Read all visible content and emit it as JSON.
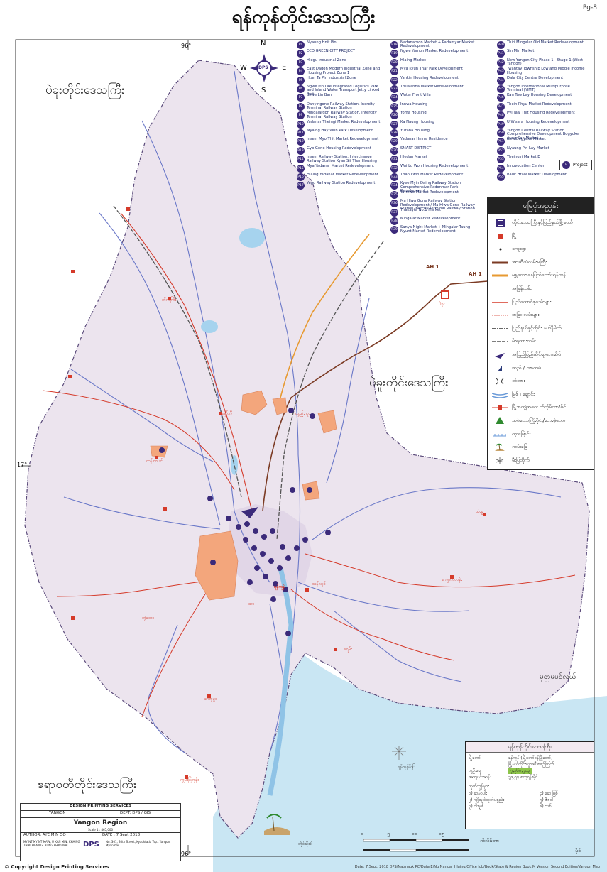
{
  "title": "ရန်ကုန်တိုင်းဒေသကြီး",
  "page_number": "Pg-8",
  "compass": {
    "n": "N",
    "s": "S",
    "e": "E",
    "w": "W",
    "center": "DPS"
  },
  "graticule": {
    "lon_top": "96°",
    "lon_bottom": "96°",
    "lat_left": "17°"
  },
  "region_labels": {
    "bago_nw": "ပဲခူးတိုင်းဒေသကြီး",
    "bago_e": "ပဲခူးတိုင်းဒေသကြီး",
    "ayeyarwady": "ဧရာဝတီတိုင်းဒေသကြီး",
    "sea": "မုတ္တမပင်လယ်"
  },
  "roads": {
    "ah1_a": "AH 1",
    "ah1_b": "AH 1"
  },
  "projects": [
    {
      "id": "P1",
      "label": "Nyaung Hnit Pin"
    },
    {
      "id": "P2",
      "label": "ECO GREEN CITY PROJECT"
    },
    {
      "id": "P3",
      "label": "Hlegu Industrial Zone"
    },
    {
      "id": "P4",
      "label": "East Dagon Modern Industrial Zone and Housing Project Zone 1"
    },
    {
      "id": "P5",
      "label": "Htan Ta Pin Industrial Zone"
    },
    {
      "id": "P6",
      "label": "Ngwe Pin Lae Integrated Logistics Park and Inland Water Transport Jetty Linked Port"
    },
    {
      "id": "P7",
      "label": "Shwe Lin Ban"
    },
    {
      "id": "P8",
      "label": "Danyingone Railway Station, Inercity Terminal Railway Station"
    },
    {
      "id": "P9",
      "label": "Mingalardon Railway Station, Intercity Terminal Railway Station"
    },
    {
      "id": "P10",
      "label": "Yadanar Theingi Market Redevelopment"
    },
    {
      "id": "P11",
      "label": "Myaing Hay Wun Park Development"
    },
    {
      "id": "P12",
      "label": "Insein Myo Thit Market Redevelopment"
    },
    {
      "id": "P13",
      "label": "Gyo Gone Housing Redevelopment"
    },
    {
      "id": "P14",
      "label": "Insein Railway Station, Interchange Railway Station Kyan Sit Thar Housing"
    },
    {
      "id": "P15",
      "label": "Mya Yadanar Market Redevelopment"
    },
    {
      "id": "P16",
      "label": "Hlaing Yadanar Market Redevelopment"
    },
    {
      "id": "P17",
      "label": "Yegu Railway Station Redevelopment"
    },
    {
      "id": "P18",
      "label": "Nadanarvon Market + Padamyar Market Redevelopment"
    },
    {
      "id": "P19",
      "label": "Ngwe Yamon Market Redevelopment"
    },
    {
      "id": "P20",
      "label": "Hlaing Market"
    },
    {
      "id": "P21",
      "label": "Mya Kyun Thar Park Development"
    },
    {
      "id": "P22",
      "label": "Yankin Housing Redevelopment"
    },
    {
      "id": "P23",
      "label": "Thuwanna Market Redevelopment"
    },
    {
      "id": "P24",
      "label": "Water Front Villa"
    },
    {
      "id": "P25",
      "label": "Innwa Housing"
    },
    {
      "id": "P26",
      "label": "Yoma Housing"
    },
    {
      "id": "P27",
      "label": "Ka Naung Housing"
    },
    {
      "id": "P28",
      "label": "Yuzana Housing"
    },
    {
      "id": "P29",
      "label": "Yadanar Hninsi Residence"
    },
    {
      "id": "P30",
      "label": "SMART DISTRICT"
    },
    {
      "id": "P31",
      "label": "Hledan Market"
    },
    {
      "id": "P32",
      "label": "Wai Lu Won Housing Redevelopment"
    },
    {
      "id": "P33",
      "label": "Than Lwin Market Redevelopment"
    },
    {
      "id": "P34",
      "label": "Kyee Myin Daing Railway Station Comprehensive Padonmar Park Development"
    },
    {
      "id": "P35",
      "label": "Tarmwe Market Redevelopment"
    },
    {
      "id": "P36",
      "label": "Ma Hlwa Gone Railway Station Redevelopment / Ma Hlwa Gone Railway Station,Inercity Terminal Railway Station"
    },
    {
      "id": "P37",
      "label": "Thakayta No.1 Market"
    },
    {
      "id": "P38",
      "label": "Mingalar Market Redevelopment"
    },
    {
      "id": "P39",
      "label": "Sanya Night Market + Mingalar Taung Nyunt Market Redevelopment"
    },
    {
      "id": "P40",
      "label": "Thiri Mingalar Old Market Redevelopment"
    },
    {
      "id": "P41",
      "label": "Sin Min Market"
    },
    {
      "id": "P42",
      "label": "New Yangon City Phase 1 - Stage 1 (West Yangon)"
    },
    {
      "id": "P43",
      "label": "Twantay Township Low and Middle Income Housing"
    },
    {
      "id": "P44",
      "label": "Dala City Centre Development"
    },
    {
      "id": "P45",
      "label": "Yangon International Multipurpose Terminal (YIMT)"
    },
    {
      "id": "P46",
      "label": "Kan Taw Lay Housing Development"
    },
    {
      "id": "P47",
      "label": "Thein Phyu Market Redevelopment"
    },
    {
      "id": "P48",
      "label": "Pyi Taw Thit Housing Redevelopment"
    },
    {
      "id": "P49",
      "label": "U Wisara Housing Redevelopment"
    },
    {
      "id": "P50",
      "label": "Yangon Central Railway Station Comprehensive Development Bogyoke Aung San Market"
    },
    {
      "id": "P51",
      "label": "New Bogyoke Market"
    },
    {
      "id": "P52",
      "label": "Nyaung Pin Lay Market"
    },
    {
      "id": "P53",
      "label": "Theingyi Market E"
    },
    {
      "id": "P54",
      "label": "Innovocation Center"
    },
    {
      "id": "P55",
      "label": "Bauk Htaw Market Development"
    }
  ],
  "project_key": {
    "badge": "P",
    "label": "Project"
  },
  "legend": {
    "heading": "မြေပုံအညွှန်း",
    "items": [
      {
        "symbol": "capital",
        "label": "တိုင်းဒေသကြီးနှင့်ပြည်နယ်မြို့တော်"
      },
      {
        "symbol": "town",
        "label": "မြို့"
      },
      {
        "symbol": "village",
        "label": "ကျေးရွာ"
      },
      {
        "symbol": "highway",
        "label": "အာဆီယံလမ်းမကြီး"
      },
      {
        "symbol": "expressway",
        "label": "မန္တလေး-နေပြည်တော်-ရန်ကုန်"
      },
      {
        "symbol": "expressway2",
        "label": "အမြန်လမ်း"
      },
      {
        "symbol": "union_road",
        "label": "ပြည်ထောင်စုလမ်းများ"
      },
      {
        "symbol": "minor_road",
        "label": "အခြားလမ်းများ"
      },
      {
        "symbol": "boundary",
        "label": "ပြည်နယ်နှင့်တိုင်း နယ်နိမိတ်"
      },
      {
        "symbol": "railway",
        "label": "မီးရထားလမ်း"
      },
      {
        "symbol": "airport",
        "label": "အပြည်ပြည်ဆိုင်ရာလေဆိပ်"
      },
      {
        "symbol": "dam",
        "label": "ဆည် / တာတမံ"
      },
      {
        "symbol": "bridge",
        "label": "တံတား"
      },
      {
        "symbol": "river",
        "label": "မြစ် ၊ ချောင်း"
      },
      {
        "symbol": "border_gate",
        "label": "မြို့အကျွံအဝေး ကီလိုမီတာ/မိုင်"
      },
      {
        "symbol": "forest",
        "label": "သစ်တောကြိုးဝိုင်း/ဘေးမဲ့တော"
      },
      {
        "symbol": "salt",
        "label": "တူးမြောင်း"
      },
      {
        "symbol": "beach",
        "label": "ကမ်းခြေ"
      },
      {
        "symbol": "lighthouse",
        "label": "မီးပြတိုက်"
      }
    ]
  },
  "info_box": {
    "heading": "ရန်ကုန်တိုင်းဒေသကြီး",
    "rows": [
      {
        "k": "မြို့တော်",
        "v": "ရန်ကုန် (မြို့တော်ဝန်မြို့တော်)"
      },
      {
        "k": "",
        "v": "မြို့နယ်တိုင်းလူ့အစီအစဉ်ကြက်"
      },
      {
        "k": "လူဦးရေ",
        "v": "၇,၃၆၀,၇၀၃"
      },
      {
        "k": "အကျယ်အဝန်း",
        "v": "၃၉,၅၇ စတုရန်းမိုင်"
      }
    ],
    "sub_heading": "ထုတ်ကုန်များ",
    "products": [
      "၁) ဆန်စပါး",
      "၂) ကျိုးမျှင်ထုတ်ပစ္စည်း",
      "၃) ငါးမျှစ်",
      "၄) ဆေးမြစ်",
      "၅) ဇီဇဝါ",
      "၆) သစ်"
    ]
  },
  "scale": {
    "labels": [
      "၀",
      "၅",
      "၁၀",
      "၁၅"
    ],
    "unit_km": "ကီလိုမီတာ",
    "unit_mi": "မိုင်"
  },
  "credit": {
    "company": "DESIGN PRINTING SERVICES",
    "city": "YANGON",
    "dept": "DEPT. DPS / GIS",
    "map_title": "Yangon Region",
    "scale_note": "Scale 1 : 465,000",
    "author": "AUTHOR: AYE MIN OO",
    "date": "DATE : 7 Sept 2018",
    "names": "MYINT MYINT MAW, U KAN MIN, KHAING THIRI HLAING, AUNG PHYO WAI",
    "logo": "DPS",
    "address": "No. 301, 30th Street, Kyauktada Tsp., Yangon, Myanmar"
  },
  "places": {
    "yangon": "ရန်ကုန်",
    "bago": "ပဲခူး",
    "thanlyin": "သန်လျင်",
    "hmawbi": "မှော်ဘီ",
    "taikkyi": "တိုက်ကြီး",
    "htantabin": "ထန်းတပင်",
    "twante": "တွံတေး",
    "kyauktan": "ကျောက်တန်း",
    "kungyangon": "ကွမ်းခြံကုန်း",
    "dala": "ဒလ",
    "kayan": "ခရမ်း",
    "thongwa": "သုံးခွ",
    "hlegu": "လှည်းကူး",
    "kawhmu": "ကော့မှူး",
    "lighthouse": "ရန်ကုန်မီးပြ",
    "beach": "တိုင်းမိုးဖိ"
  },
  "footer": {
    "copyright": "© Copyright Design Printing Services",
    "path": "Date: 7.Sept. 2018   DPS/Natmauk PC/Data E/Nu Nandar Hlaing/Office Job/Book/State & Region Book M Version Second Edition/Yangon Map"
  }
}
